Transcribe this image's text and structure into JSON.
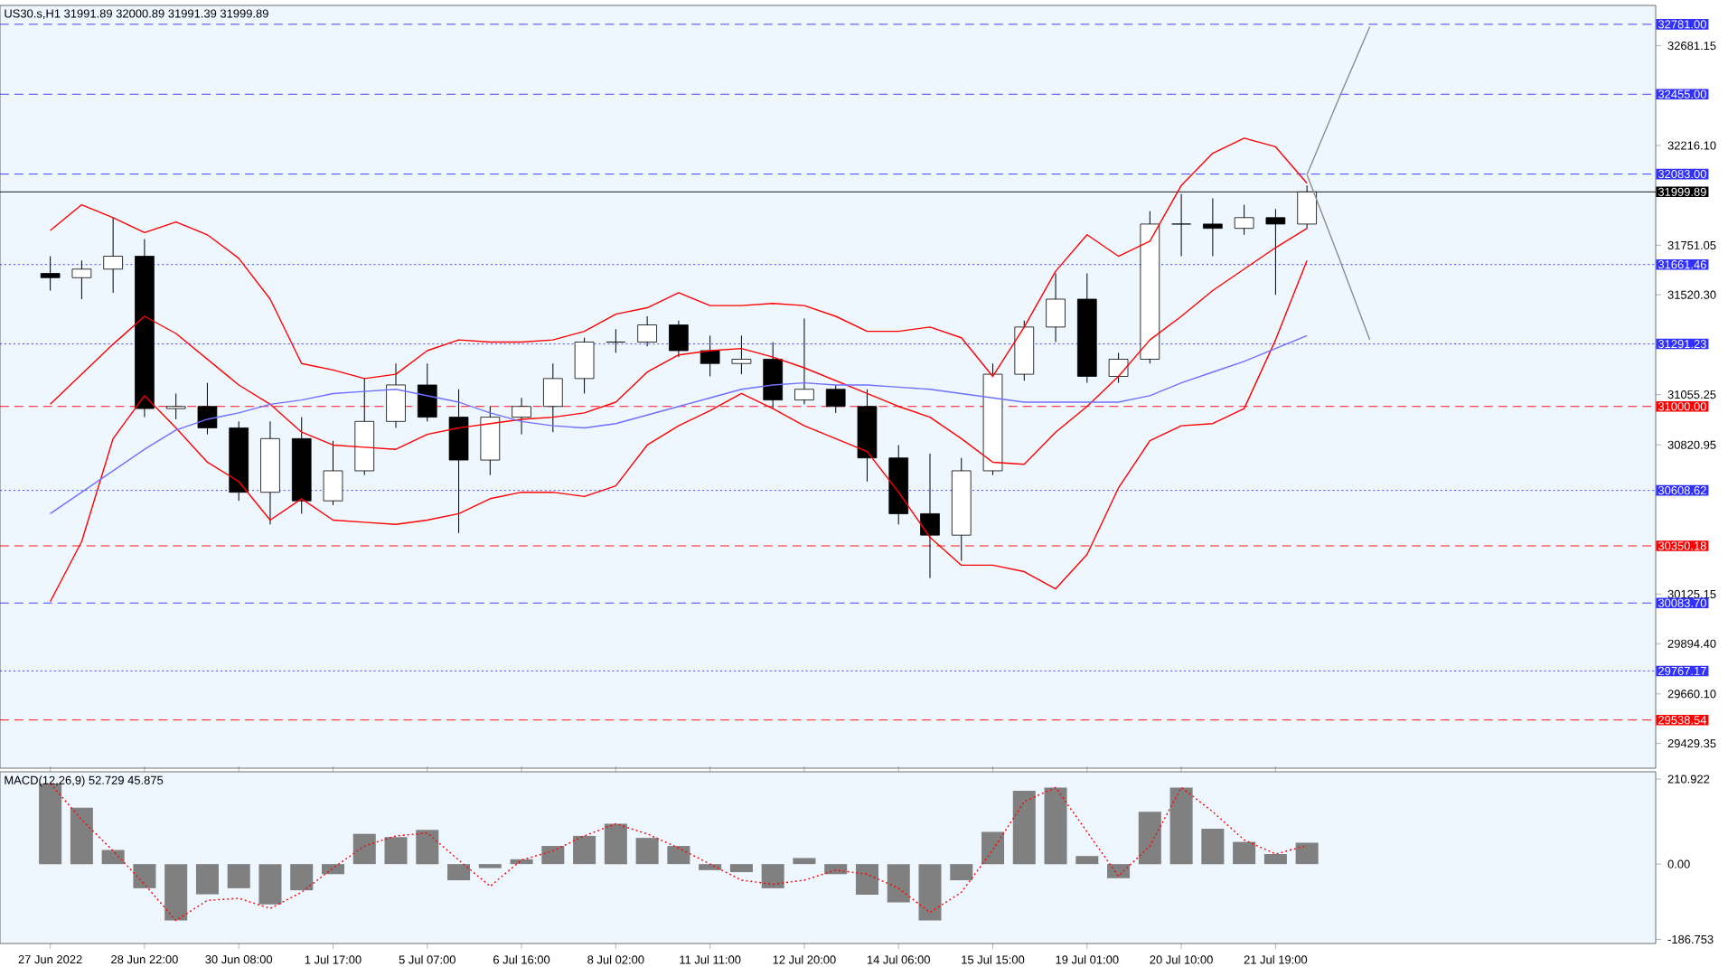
{
  "chart_data": [
    {
      "type": "candlestick",
      "title": "US30.s,H1 31991.89 32000.89 31991.39 31999.89",
      "color": "#000000",
      "categories": [
        null,
        null,
        null,
        null,
        null,
        null,
        null,
        null,
        null,
        null,
        null,
        null,
        null,
        null,
        null,
        null,
        null,
        null,
        null,
        null,
        null,
        null,
        null,
        null,
        null,
        null,
        null,
        null,
        null,
        null,
        null,
        null,
        null,
        null,
        null,
        null,
        null,
        null,
        null,
        null,
        null,
        null,
        null,
        null,
        null,
        null,
        null,
        null,
        null,
        null,
        null,
        null
      ],
      "ohlc": [
        [
          31620,
          31700,
          31540,
          31600
        ],
        [
          31600,
          31680,
          31500,
          31640
        ],
        [
          31640,
          31880,
          31530,
          31700
        ],
        [
          31700,
          31780,
          30950,
          30990
        ],
        [
          30990,
          31060,
          30940,
          31000
        ],
        [
          31000,
          31110,
          30870,
          30900
        ],
        [
          30900,
          30930,
          30560,
          30600
        ],
        [
          30600,
          30930,
          30450,
          30850
        ],
        [
          30850,
          30950,
          30500,
          30560
        ],
        [
          30560,
          30840,
          30540,
          30700
        ],
        [
          30700,
          31130,
          30680,
          30930
        ],
        [
          30930,
          31200,
          30900,
          31100
        ],
        [
          31100,
          31200,
          30930,
          30950
        ],
        [
          30950,
          31080,
          30410,
          30750
        ],
        [
          30750,
          31000,
          30680,
          30950
        ],
        [
          30950,
          31040,
          30870,
          31000
        ],
        [
          31000,
          31200,
          30880,
          31130
        ],
        [
          31130,
          31320,
          31060,
          31300
        ],
        [
          31300,
          31360,
          31250,
          31300
        ],
        [
          31300,
          31420,
          31280,
          31380
        ],
        [
          31380,
          31400,
          31230,
          31260
        ],
        [
          31260,
          31330,
          31140,
          31200
        ],
        [
          31200,
          31330,
          31150,
          31220
        ],
        [
          31220,
          31300,
          30990,
          31030
        ],
        [
          31030,
          31410,
          31010,
          31080
        ],
        [
          31080,
          31100,
          30970,
          31000
        ],
        [
          31000,
          31080,
          30650,
          30760
        ],
        [
          30760,
          30820,
          30450,
          30500
        ],
        [
          30500,
          30780,
          30200,
          30400
        ],
        [
          30400,
          30760,
          30280,
          30700
        ],
        [
          30700,
          31200,
          30680,
          31150
        ],
        [
          31150,
          31400,
          31120,
          31370
        ],
        [
          31370,
          31620,
          31300,
          31500
        ],
        [
          31500,
          31620,
          31110,
          31140
        ],
        [
          31140,
          31250,
          31110,
          31220
        ],
        [
          31220,
          31910,
          31200,
          31850
        ],
        [
          31850,
          31990,
          31700,
          31850
        ],
        [
          31850,
          31970,
          31700,
          31830
        ],
        [
          31830,
          31940,
          31800,
          31880
        ],
        [
          31880,
          31920,
          31520,
          31850
        ],
        [
          31850,
          32030,
          31830,
          31999.89
        ],
        null,
        null,
        null,
        null,
        null,
        null,
        null,
        null,
        null,
        null,
        null
      ],
      "series": [
        {
          "type": "line",
          "color": "#ff0000",
          "values": [
            31820,
            31940,
            31880,
            31810,
            31860,
            31800,
            31690,
            31500,
            31200,
            31170,
            31130,
            31150,
            31260,
            31310,
            31300,
            31300,
            31310,
            31350,
            31430,
            31460,
            31530,
            31470,
            31470,
            31480,
            31470,
            31420,
            31350,
            31350,
            31370,
            31320,
            31140,
            31370,
            31630,
            31800,
            31700,
            31770,
            32030,
            32180,
            32250,
            32210,
            32040,
            null,
            null,
            null,
            null,
            null,
            null,
            null,
            null,
            null,
            null,
            null
          ]
        },
        {
          "type": "line",
          "color": "#ff0000",
          "values": [
            31010,
            31150,
            31290,
            31420,
            31340,
            31220,
            31100,
            31010,
            30880,
            30820,
            30810,
            30800,
            30870,
            30900,
            30920,
            30940,
            30950,
            30970,
            31020,
            31160,
            31240,
            31260,
            31270,
            31230,
            31180,
            31120,
            31060,
            31000,
            30950,
            30850,
            30740,
            30730,
            30880,
            31000,
            31140,
            31310,
            31420,
            31540,
            31640,
            31740,
            31830,
            null,
            null,
            null,
            null,
            null,
            null,
            null,
            null,
            null,
            null,
            null
          ]
        },
        {
          "type": "line",
          "color": "#ff0000",
          "values": [
            30090,
            30370,
            30850,
            31050,
            30900,
            30740,
            30650,
            30470,
            30570,
            30470,
            30460,
            30450,
            30470,
            30500,
            30570,
            30600,
            30600,
            30580,
            30630,
            30820,
            30910,
            30980,
            31060,
            30990,
            30910,
            30850,
            30790,
            30600,
            30390,
            30260,
            30260,
            30230,
            30150,
            30310,
            30620,
            30840,
            30910,
            30920,
            30990,
            31310,
            31680,
            null,
            null,
            null,
            null,
            null,
            null,
            null,
            null,
            null,
            null,
            null
          ]
        },
        {
          "type": "line",
          "color": "#7070ff",
          "values": [
            30500,
            30600,
            30700,
            30800,
            30890,
            30940,
            30970,
            31010,
            31030,
            31060,
            31070,
            31080,
            31050,
            31020,
            30970,
            30930,
            30910,
            30900,
            30920,
            30960,
            31000,
            31040,
            31080,
            31100,
            31110,
            31100,
            31100,
            31090,
            31080,
            31060,
            31040,
            31020,
            31020,
            31020,
            31020,
            31050,
            31110,
            31160,
            31210,
            31270,
            31330,
            null,
            null,
            null,
            null,
            null,
            null,
            null,
            null,
            null,
            null,
            null
          ]
        },
        {
          "type": "line",
          "color": "#8c8c8c",
          "values": [
            null,
            null,
            null,
            null,
            null,
            null,
            null,
            null,
            null,
            null,
            null,
            null,
            null,
            null,
            null,
            null,
            null,
            null,
            null,
            null,
            null,
            null,
            null,
            null,
            null,
            null,
            null,
            null,
            null,
            null,
            null,
            null,
            null,
            null,
            null,
            null,
            null,
            null,
            null,
            null,
            32080,
            32430,
            32770,
            null,
            null,
            null,
            null,
            null,
            null,
            null,
            null,
            null
          ]
        },
        {
          "type": "line",
          "color": "#8c8c8c",
          "values": [
            null,
            null,
            null,
            null,
            null,
            null,
            null,
            null,
            null,
            null,
            null,
            null,
            null,
            null,
            null,
            null,
            null,
            null,
            null,
            null,
            null,
            null,
            null,
            null,
            null,
            null,
            null,
            null,
            null,
            null,
            null,
            null,
            null,
            null,
            null,
            null,
            null,
            null,
            null,
            null,
            32080,
            31700,
            31310,
            null,
            null,
            null,
            null,
            null,
            null,
            null,
            null,
            null
          ]
        }
      ],
      "ylim": [
        29314,
        32869
      ],
      "yticks": [
        32681.15,
        {
          "value": 32216.1,
          "label": "32216.10"
        },
        31751.05,
        {
          "value": 31520.3,
          "label": "31520.30"
        },
        31055.25,
        30820.95,
        30125.15,
        {
          "value": 29894.4,
          "label": "29894.40"
        },
        {
          "value": 29660.1,
          "label": "29660.10"
        },
        29429.35
      ],
      "ref_lines": [
        {
          "axis": "y",
          "value": 32781,
          "label": "32781.00",
          "color": "#3030ff",
          "line_style": "dashed"
        },
        {
          "axis": "y",
          "value": 32455,
          "label": "32455.00",
          "color": "#3030ff",
          "line_style": "dashed"
        },
        {
          "axis": "y",
          "value": 32083,
          "label": "32083.00",
          "color": "#3030ff",
          "line_style": "dashed"
        },
        {
          "axis": "y",
          "value": 31999.89,
          "label": "31999.89",
          "color": "#000000",
          "line_style": "solid"
        },
        {
          "axis": "y",
          "value": 31661.46,
          "label": "31661.46",
          "color": "#3030ff",
          "line_style": "dotted"
        },
        {
          "axis": "y",
          "value": 31291.23,
          "label": "31291.23",
          "color": "#3030ff",
          "line_style": "dotted"
        },
        {
          "axis": "y",
          "value": 31000,
          "label": "31000.00",
          "color": "#ff0000",
          "line_style": "dashed"
        },
        {
          "axis": "y",
          "value": 30608.62,
          "label": "30608.62",
          "color": "#3030ff",
          "line_style": "dotted"
        },
        {
          "axis": "y",
          "value": 30350.18,
          "label": "30350.18",
          "color": "#ff0000",
          "line_style": "dashed"
        },
        {
          "axis": "y",
          "value": 30083.7,
          "label": "30083.70",
          "color": "#3030ff",
          "line_style": "dashed"
        },
        {
          "axis": "y",
          "value": 29767.17,
          "label": "29767.17",
          "color": "#3030ff",
          "line_style": "dotted"
        },
        {
          "axis": "y",
          "value": 29538.54,
          "label": "29538.54",
          "color": "#ff0000",
          "line_style": "dashed"
        }
      ]
    },
    {
      "type": "bar",
      "title": "MACD(12,26,9) 52.729 45.875",
      "categories": [
        "27 Jun 2022",
        null,
        null,
        "28 Jun 22:00",
        null,
        null,
        "30 Jun 08:00",
        null,
        null,
        "1 Jul 17:00",
        null,
        null,
        "5 Jul 07:00",
        null,
        null,
        "6 Jul 16:00",
        null,
        null,
        "8 Jul 02:00",
        null,
        null,
        "11 Jul 11:00",
        null,
        null,
        "12 Jul 20:00",
        null,
        null,
        "14 Jul 06:00",
        null,
        null,
        "15 Jul 15:00",
        null,
        null,
        "19 Jul 01:00",
        null,
        null,
        "20 Jul 10:00",
        null,
        null,
        "21 Jul 19:00",
        null,
        null,
        null,
        null,
        null,
        null,
        null,
        null,
        null,
        null,
        null,
        null
      ],
      "series": [
        {
          "type": "bar",
          "color": "#808080",
          "values": [
            200,
            140,
            35,
            -60,
            -140,
            -75,
            -60,
            -100,
            -65,
            -25,
            75,
            67,
            85,
            -40,
            -10,
            12,
            45,
            70,
            100,
            65,
            45,
            -15,
            -20,
            -60,
            15,
            -25,
            -76,
            -95,
            -140,
            -40,
            80,
            182,
            190,
            20,
            -35,
            130,
            190,
            88,
            55,
            25,
            53,
            null,
            null,
            null,
            null,
            null,
            null,
            null,
            null,
            null,
            null,
            null
          ]
        },
        {
          "type": "line",
          "color": "#ff0000",
          "line_style": "dotted",
          "values": [
            200,
            110,
            33,
            -50,
            -140,
            -90,
            -85,
            -110,
            -70,
            -10,
            45,
            70,
            77,
            10,
            -55,
            10,
            33,
            70,
            100,
            75,
            40,
            0,
            -40,
            -50,
            -40,
            -15,
            -25,
            -60,
            -120,
            -70,
            35,
            155,
            190,
            80,
            -30,
            45,
            190,
            130,
            60,
            25,
            46,
            null,
            null,
            null,
            null,
            null,
            null,
            null,
            null,
            null,
            null,
            null
          ]
        }
      ],
      "ylim": [
        -197,
        229
      ],
      "yticks": [
        210.922,
        {
          "value": 0,
          "label": "0.00"
        },
        -186.753
      ]
    }
  ]
}
